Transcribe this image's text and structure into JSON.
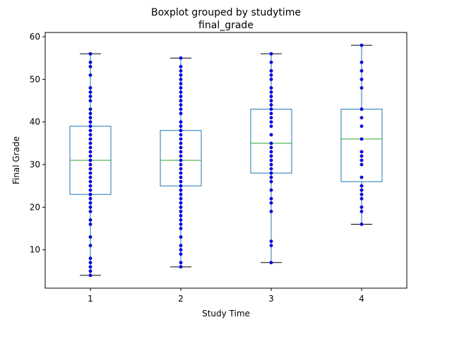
{
  "chart_data": {
    "type": "boxplot",
    "title": "Boxplot grouped by studytime",
    "subtitle": "final_grade",
    "xlabel": "Study Time",
    "ylabel": "Final Grade",
    "ylim": [
      1,
      61
    ],
    "yticks": [
      10,
      20,
      30,
      40,
      50,
      60
    ],
    "grid": false,
    "categories": [
      "1",
      "2",
      "3",
      "4"
    ],
    "boxes": [
      {
        "category": "1",
        "whisker_low": 4,
        "q1": 23,
        "median": 31,
        "q3": 39,
        "whisker_high": 56
      },
      {
        "category": "2",
        "whisker_low": 6,
        "q1": 25,
        "median": 31,
        "q3": 38,
        "whisker_high": 55
      },
      {
        "category": "3",
        "whisker_low": 7,
        "q1": 28,
        "median": 35,
        "q3": 43,
        "whisker_high": 56
      },
      {
        "category": "4",
        "whisker_low": 16,
        "q1": 26,
        "median": 36,
        "q3": 43,
        "whisker_high": 58
      }
    ],
    "points": [
      {
        "category": "1",
        "values": [
          4,
          5,
          6,
          7,
          8,
          11,
          13,
          16,
          17,
          19,
          20,
          21,
          22,
          23,
          24,
          25,
          26,
          27,
          28,
          29,
          30,
          31,
          32,
          33,
          34,
          35,
          36,
          37,
          38,
          39,
          40,
          41,
          42,
          43,
          45,
          46,
          47,
          48,
          51,
          53,
          54,
          56
        ]
      },
      {
        "category": "2",
        "values": [
          6,
          7,
          9,
          10,
          11,
          13,
          15,
          16,
          17,
          18,
          19,
          20,
          21,
          22,
          23,
          24,
          25,
          26,
          27,
          28,
          29,
          30,
          31,
          32,
          33,
          34,
          35,
          36,
          37,
          38,
          39,
          40,
          42,
          43,
          44,
          45,
          46,
          47,
          48,
          49,
          50,
          51,
          52,
          53,
          55
        ]
      },
      {
        "category": "3",
        "values": [
          7,
          11,
          12,
          19,
          21,
          22,
          24,
          26,
          27,
          28,
          29,
          30,
          31,
          32,
          33,
          34,
          35,
          37,
          39,
          40,
          41,
          42,
          43,
          44,
          45,
          46,
          47,
          48,
          50,
          51,
          52,
          54,
          56
        ]
      },
      {
        "category": "4",
        "values": [
          16,
          19,
          20,
          22,
          23,
          24,
          25,
          27,
          30,
          31,
          32,
          33,
          36,
          39,
          41,
          43,
          48,
          50,
          52,
          54,
          58
        ]
      }
    ],
    "colors": {
      "box": "#1f77b4",
      "median": "#2ca02c",
      "cap": "#000000",
      "points": "#0000ff"
    }
  }
}
